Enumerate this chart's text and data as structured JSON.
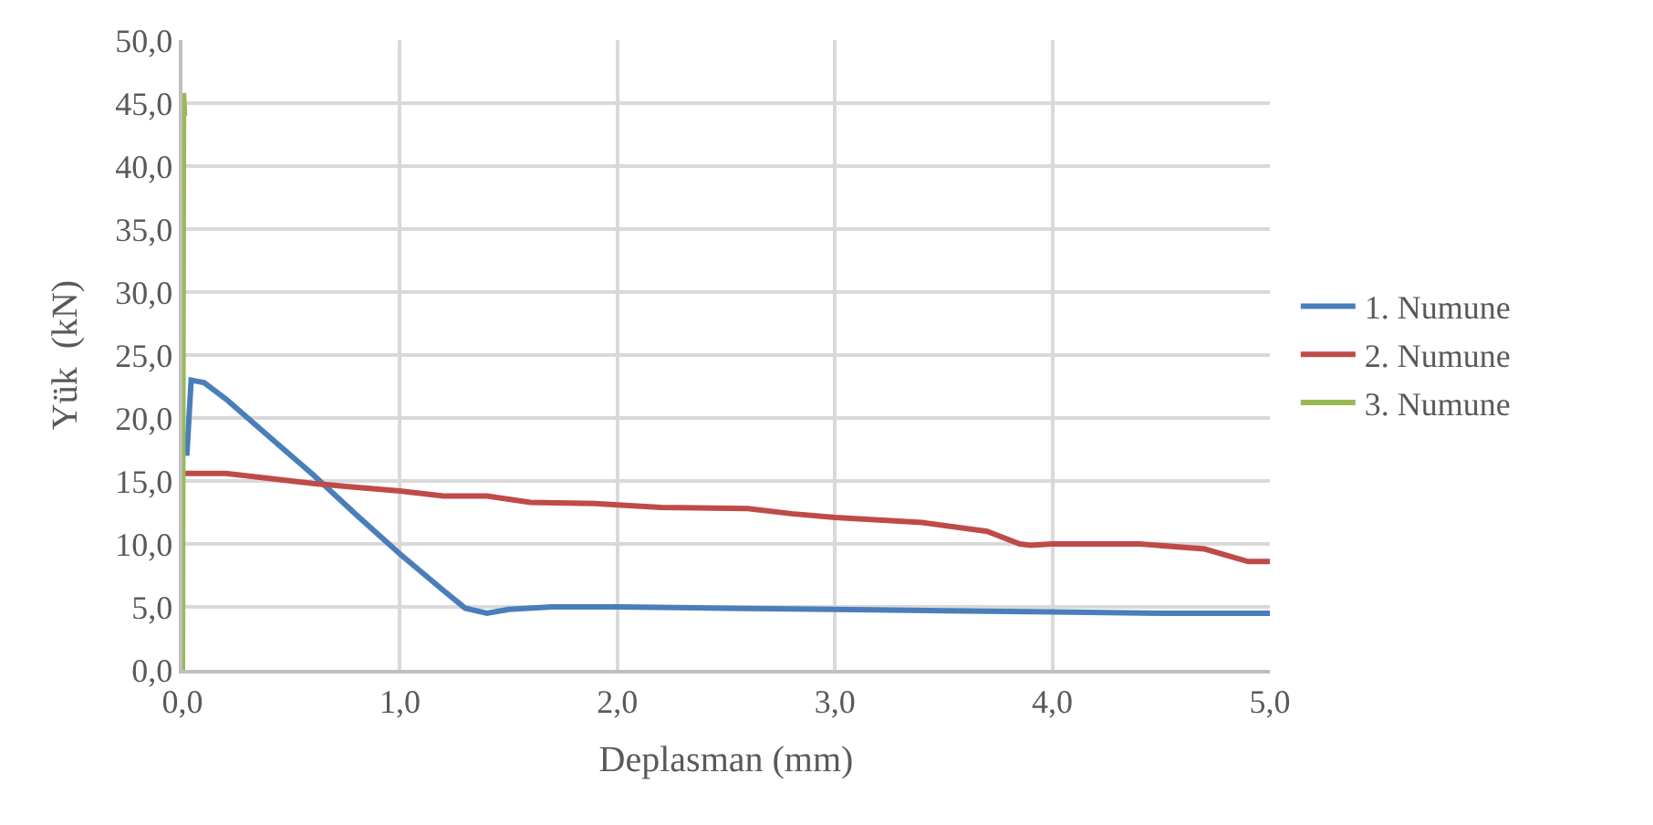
{
  "chart_data": {
    "type": "line",
    "xlabel": "Deplasman (mm)",
    "ylabel": "Yük  (kN)",
    "xlim": [
      0,
      5
    ],
    "ylim": [
      0,
      50
    ],
    "xticks": [
      {
        "value": 0,
        "label": "0,0"
      },
      {
        "value": 1,
        "label": "1,0"
      },
      {
        "value": 2,
        "label": "2,0"
      },
      {
        "value": 3,
        "label": "3,0"
      },
      {
        "value": 4,
        "label": "4,0"
      },
      {
        "value": 5,
        "label": "5,0"
      }
    ],
    "yticks": [
      {
        "value": 0,
        "label": "0,0"
      },
      {
        "value": 5,
        "label": "5,0"
      },
      {
        "value": 10,
        "label": "10,0"
      },
      {
        "value": 15,
        "label": "15,0"
      },
      {
        "value": 20,
        "label": "20,0"
      },
      {
        "value": 25,
        "label": "25,0"
      },
      {
        "value": 30,
        "label": "30,0"
      },
      {
        "value": 35,
        "label": "35,0"
      },
      {
        "value": 40,
        "label": "40,0"
      },
      {
        "value": 45,
        "label": "45,0"
      },
      {
        "value": 50,
        "label": "50,0"
      }
    ],
    "grid": true,
    "legend": "right",
    "marker": "none",
    "line_style": "solid",
    "series": [
      {
        "name": "1. Numune",
        "color": "#4a7ebb",
        "x": [
          0.02,
          0.04,
          0.1,
          0.2,
          0.4,
          0.6,
          0.8,
          1.0,
          1.2,
          1.3,
          1.4,
          1.5,
          1.7,
          2.0,
          2.5,
          3.0,
          3.5,
          4.0,
          4.5,
          5.0
        ],
        "values": [
          17,
          23,
          22.8,
          21.5,
          18.5,
          15.5,
          12.3,
          9.2,
          6.3,
          4.9,
          4.5,
          4.8,
          5.0,
          5.0,
          4.9,
          4.8,
          4.7,
          4.6,
          4.5,
          4.5
        ]
      },
      {
        "name": "2. Numune",
        "color": "#be4b48",
        "x": [
          0,
          0.2,
          0.4,
          0.6,
          0.8,
          1.0,
          1.2,
          1.4,
          1.6,
          1.9,
          2.0,
          2.2,
          2.6,
          2.8,
          3.0,
          3.4,
          3.7,
          3.85,
          3.9,
          4.0,
          4.4,
          4.7,
          4.9,
          5.0
        ],
        "values": [
          15.6,
          15.6,
          15.2,
          14.8,
          14.5,
          14.2,
          13.8,
          13.8,
          13.3,
          13.2,
          13.1,
          12.9,
          12.8,
          12.4,
          12.1,
          11.7,
          11.0,
          10.0,
          9.9,
          10.0,
          10.0,
          9.6,
          8.6,
          8.6
        ]
      },
      {
        "name": "3. Numune",
        "color": "#98b954",
        "x": [
          0,
          0.002,
          0.005,
          0.01
        ],
        "values": [
          0,
          20,
          45.8,
          44
        ]
      }
    ]
  }
}
